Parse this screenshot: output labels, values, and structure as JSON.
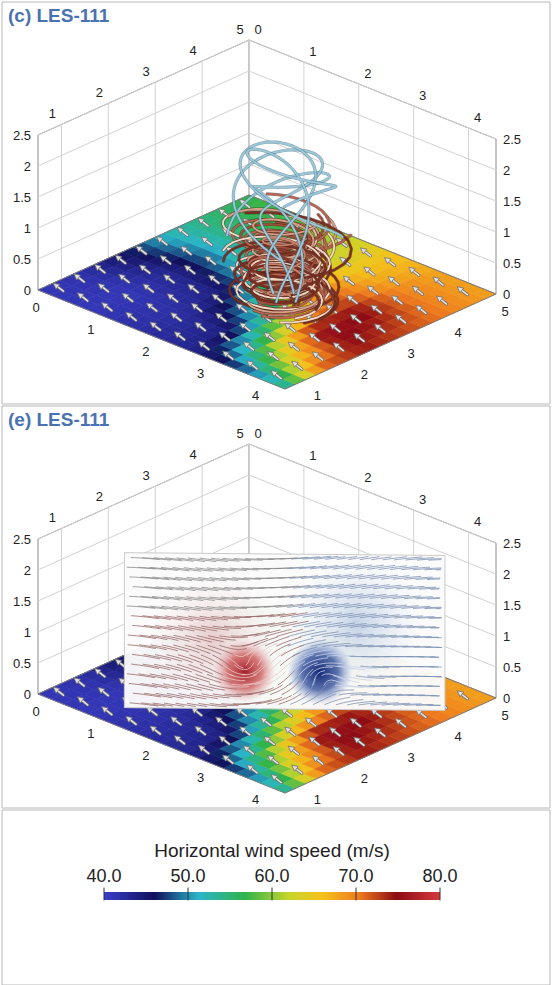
{
  "chart_data": [
    {
      "type": "streamlines",
      "title": "(c) LES-111",
      "xlim": [
        0,
        4.5
      ],
      "xticks": [
        0,
        1,
        2,
        3,
        4
      ],
      "ylim": [
        0.5,
        5
      ],
      "yticks": [
        1,
        2,
        3,
        4,
        5
      ],
      "zlim": [
        0,
        2.5
      ],
      "zticks": [
        0,
        0.5,
        1,
        1.5,
        2,
        2.5
      ],
      "grid": true,
      "vortex_center": [
        2.7,
        2.6
      ],
      "ground_speed": {
        "x": [
          0,
          0.9,
          1.8,
          2.7,
          3.6,
          4.5
        ],
        "y": [
          0.5,
          1.4,
          2.3,
          3.2,
          4.1,
          5
        ],
        "values": [
          [
            41,
            41,
            42,
            43,
            46,
            52
          ],
          [
            42,
            41,
            42,
            44,
            62,
            72
          ],
          [
            46,
            43,
            44,
            55,
            76,
            74
          ],
          [
            52,
            50,
            54,
            70,
            75,
            72
          ],
          [
            55,
            56,
            60,
            66,
            70,
            70
          ],
          [
            57,
            58,
            62,
            66,
            68,
            68
          ]
        ]
      }
    },
    {
      "type": "slice",
      "title": "(e) LES-111",
      "xlim": [
        0,
        4.5
      ],
      "xticks": [
        0,
        1,
        2,
        3,
        4
      ],
      "ylim": [
        0.5,
        5
      ],
      "yticks": [
        1,
        2,
        3,
        4,
        5
      ],
      "zlim": [
        0,
        2.5
      ],
      "zticks": [
        0,
        0.5,
        1,
        1.5,
        2,
        2.5
      ],
      "grid": true,
      "vortex_center": [
        2.7,
        2.6
      ],
      "ground_speed": {
        "x": [
          0,
          0.9,
          1.8,
          2.7,
          3.6,
          4.5
        ],
        "y": [
          0.5,
          1.4,
          2.3,
          3.2,
          4.1,
          5
        ],
        "values": [
          [
            41,
            41,
            42,
            43,
            46,
            52
          ],
          [
            42,
            41,
            42,
            44,
            62,
            72
          ],
          [
            46,
            43,
            44,
            55,
            76,
            74
          ],
          [
            52,
            50,
            54,
            70,
            75,
            72
          ],
          [
            55,
            56,
            60,
            66,
            70,
            70
          ],
          [
            57,
            58,
            62,
            66,
            68,
            68
          ]
        ]
      }
    }
  ],
  "colorbar": {
    "title": "Horizontal wind speed (m/s)",
    "range": [
      40,
      80
    ],
    "ticks": [
      {
        "value": 40,
        "label": "40.0"
      },
      {
        "value": 50,
        "label": "50.0"
      },
      {
        "value": 60,
        "label": "60.0"
      },
      {
        "value": 70,
        "label": "70.0"
      },
      {
        "value": 80,
        "label": "80.0"
      }
    ]
  }
}
